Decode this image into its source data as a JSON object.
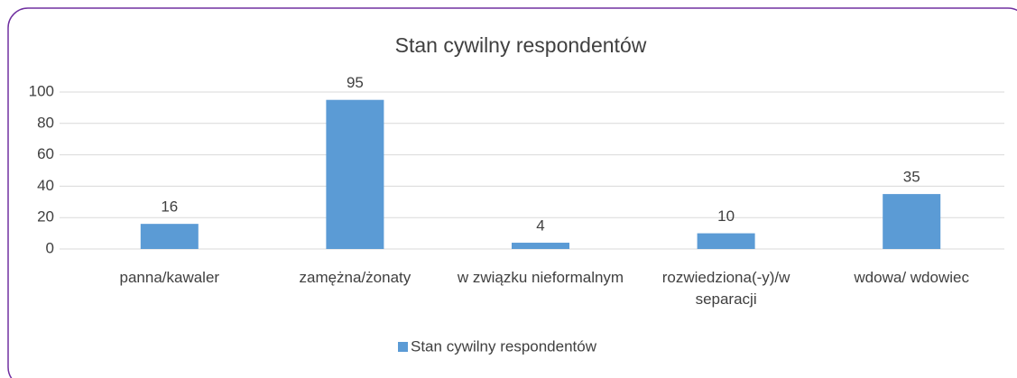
{
  "chart_data": {
    "type": "bar",
    "title": "Stan cywilny respondentów",
    "categories": [
      "panna/kawaler",
      "zamężna/żonaty",
      "w związku nieformalnym",
      "rozwiedziona(-y)/w separacji",
      "wdowa/ wdowiec"
    ],
    "series": [
      {
        "name": "Stan cywilny respondentów",
        "color": "#5b9bd5",
        "values": [
          16,
          95,
          4,
          10,
          35
        ]
      }
    ],
    "ylim": [
      0,
      100
    ],
    "yticks": [
      0,
      20,
      40,
      60,
      80,
      100
    ],
    "grid": true,
    "legend": "bottom"
  }
}
